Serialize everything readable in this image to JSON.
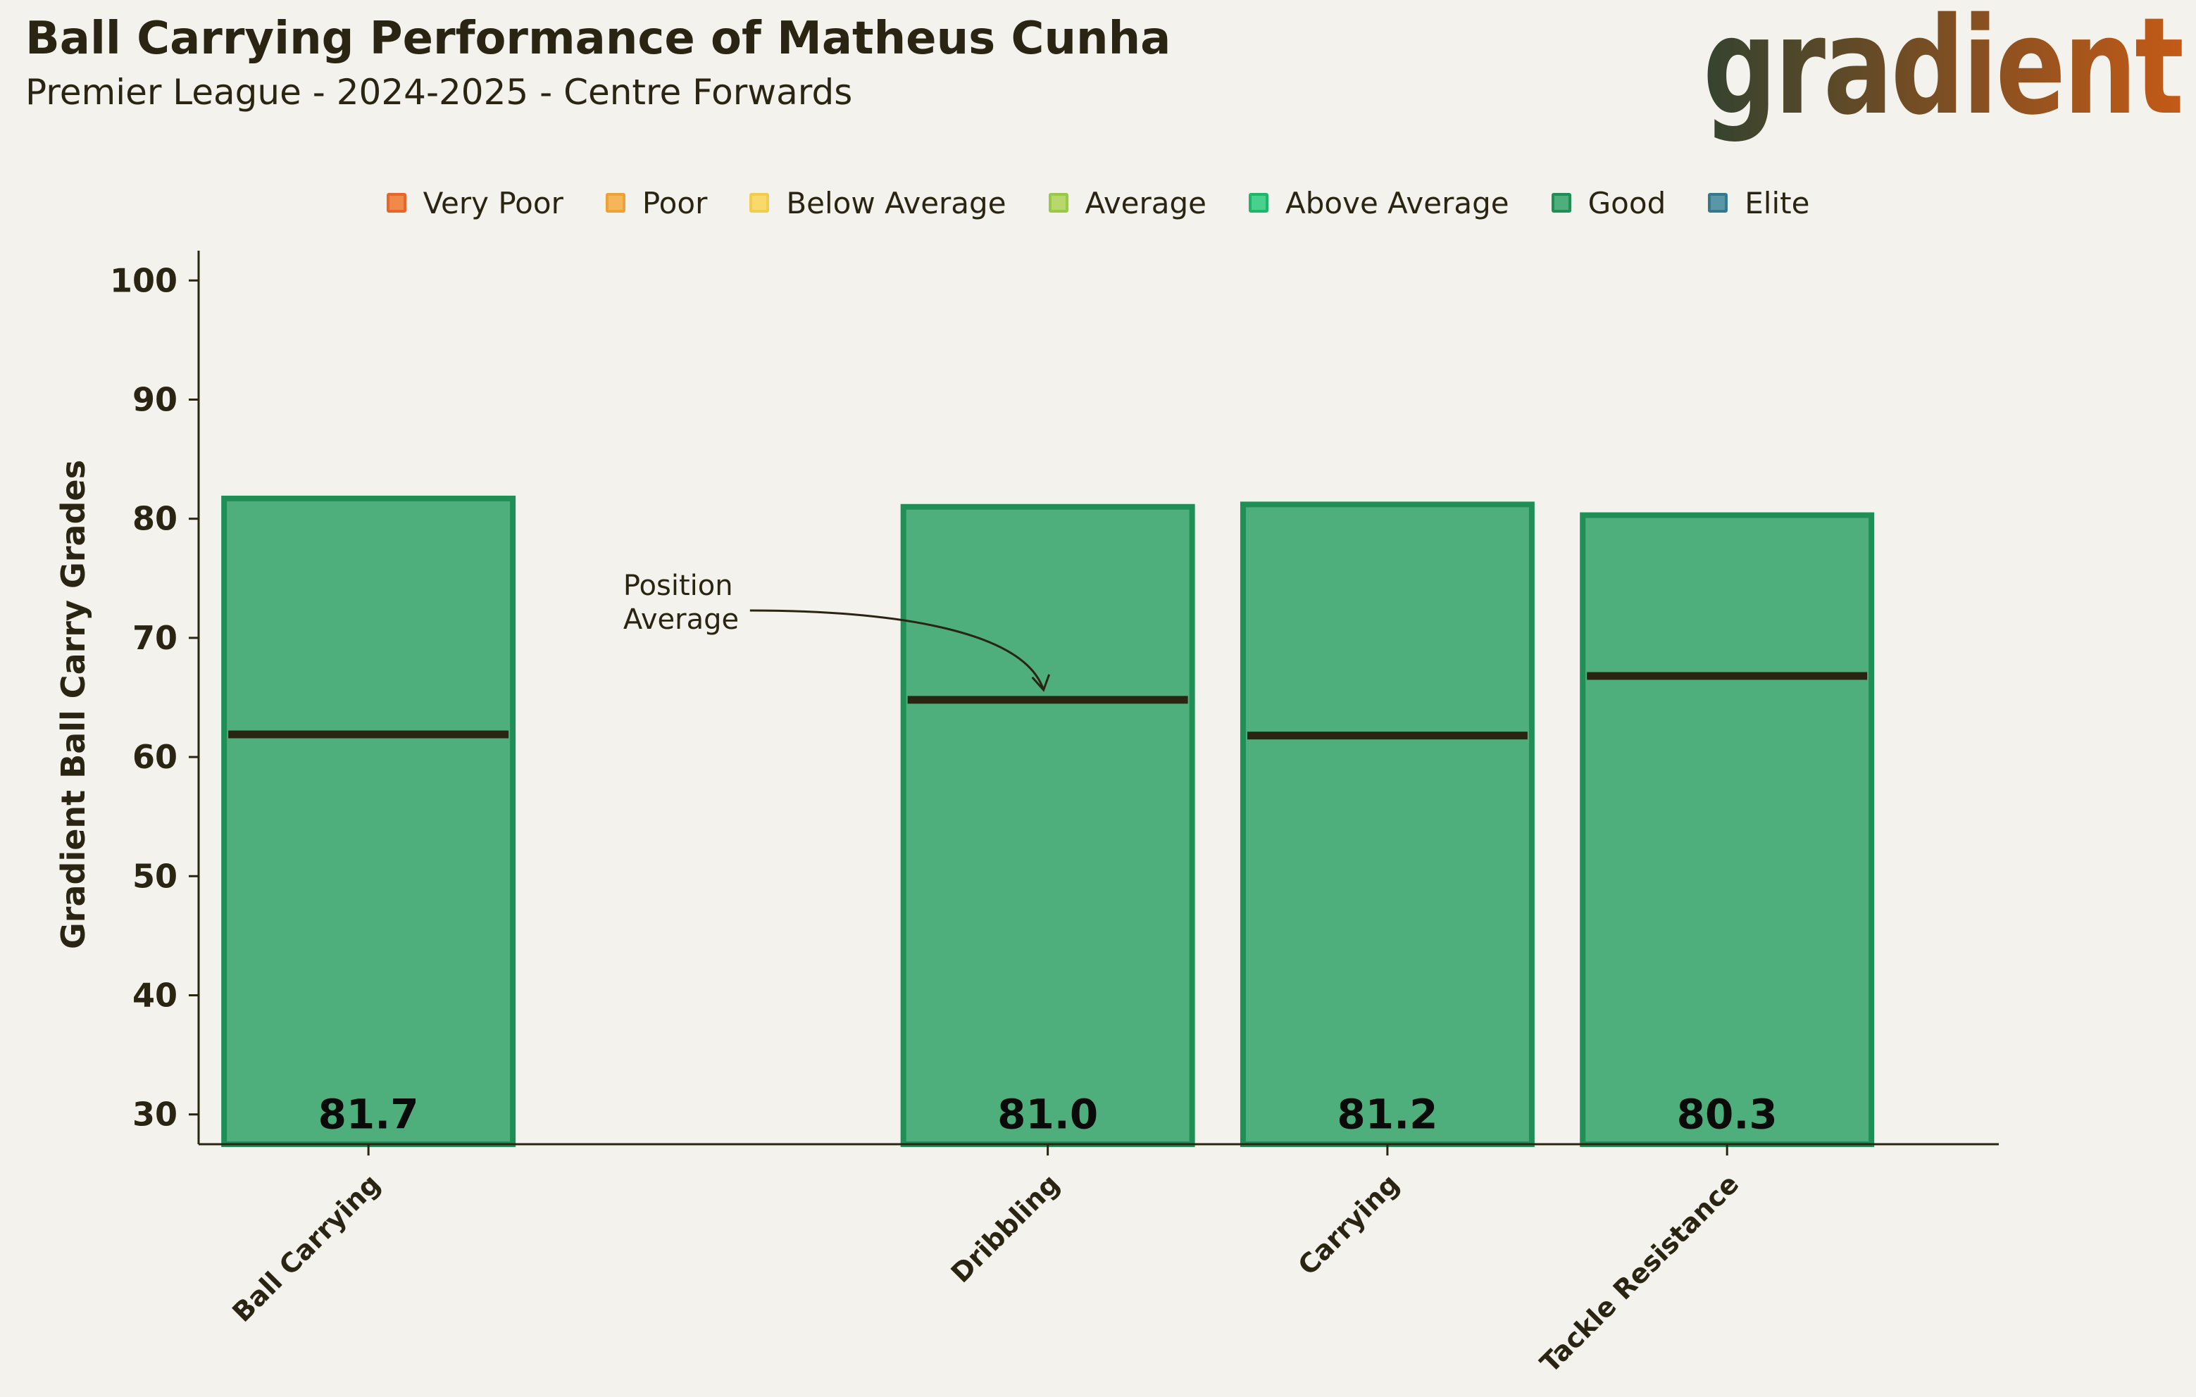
{
  "header": {
    "title": "Ball Carrying Performance of Matheus Cunha",
    "subtitle": "Premier League - 2024-2025 - Centre Forwards"
  },
  "logo": {
    "text": "gradient",
    "gradient_colors": [
      "#34432f",
      "#c45a17"
    ]
  },
  "legend": [
    {
      "label": "Very Poor",
      "color": "#f08a4b",
      "border": "#e8662b"
    },
    {
      "label": "Poor",
      "color": "#f5b55a",
      "border": "#eda238"
    },
    {
      "label": "Below Average",
      "color": "#f7da6b",
      "border": "#f2cc4d"
    },
    {
      "label": "Average",
      "color": "#b7d86a",
      "border": "#9cc84a"
    },
    {
      "label": "Above Average",
      "color": "#47d18c",
      "border": "#1fb66c"
    },
    {
      "label": "Good",
      "color": "#4faf7c",
      "border": "#1f8f55"
    },
    {
      "label": "Elite",
      "color": "#5a97a6",
      "border": "#357a8c"
    }
  ],
  "chart_data": {
    "type": "bar",
    "categories": [
      "Ball Carrying",
      "Dribbling",
      "Carrying",
      "Tackle Resistance"
    ],
    "x_positions": [
      0,
      2,
      3,
      4
    ],
    "values": [
      81.7,
      81.0,
      81.2,
      80.3
    ],
    "value_labels": [
      "81.7",
      "81.0",
      "81.2",
      "80.3"
    ],
    "position_average": [
      61.9,
      64.8,
      61.8,
      66.8
    ],
    "bar_fill": "#4faf7c",
    "bar_border": "#1f8f55",
    "average_line_color": "#2a2412",
    "ylabel": "Gradient Ball Carry Grades",
    "ylim": [
      27.5,
      102.5
    ],
    "yticks": [
      30,
      40,
      50,
      60,
      70,
      80,
      90,
      100
    ],
    "annotation": {
      "lines": [
        "Position",
        "Average"
      ],
      "target_category": "Dribbling"
    }
  }
}
